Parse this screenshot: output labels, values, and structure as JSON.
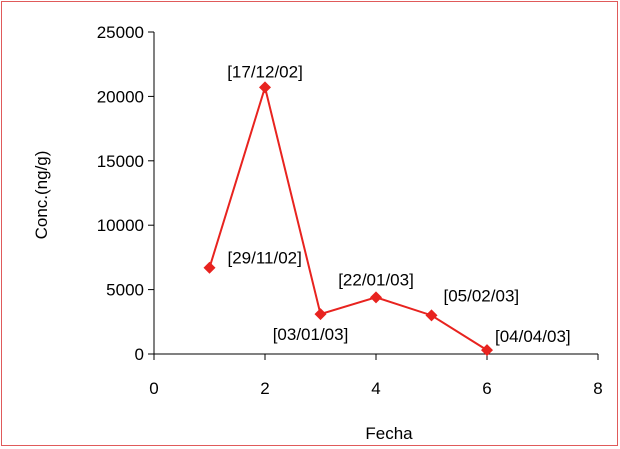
{
  "chart_data": {
    "type": "scatter",
    "mode": "lines+markers",
    "xlabel": "Fecha",
    "ylabel": "Conc.(ng/g)",
    "xlim": [
      0,
      8
    ],
    "ylim": [
      0,
      25000
    ],
    "x_ticks": [
      0,
      2,
      4,
      6,
      8
    ],
    "y_ticks": [
      0,
      5000,
      10000,
      15000,
      20000,
      25000
    ],
    "grid": false,
    "legend": false,
    "series": [
      {
        "color": "#e8231f",
        "marker": "diamond",
        "points": [
          {
            "x": 1,
            "y": 6700,
            "label": "[29/11/02]"
          },
          {
            "x": 2,
            "y": 20700,
            "label": "[17/12/02]"
          },
          {
            "x": 3,
            "y": 3100,
            "label": "[03/01/03]"
          },
          {
            "x": 4,
            "y": 4400,
            "label": "[22/01/03]"
          },
          {
            "x": 5,
            "y": 3000,
            "label": "[05/02/03]"
          },
          {
            "x": 6,
            "y": 300,
            "label": "[04/04/03]"
          }
        ]
      }
    ]
  }
}
